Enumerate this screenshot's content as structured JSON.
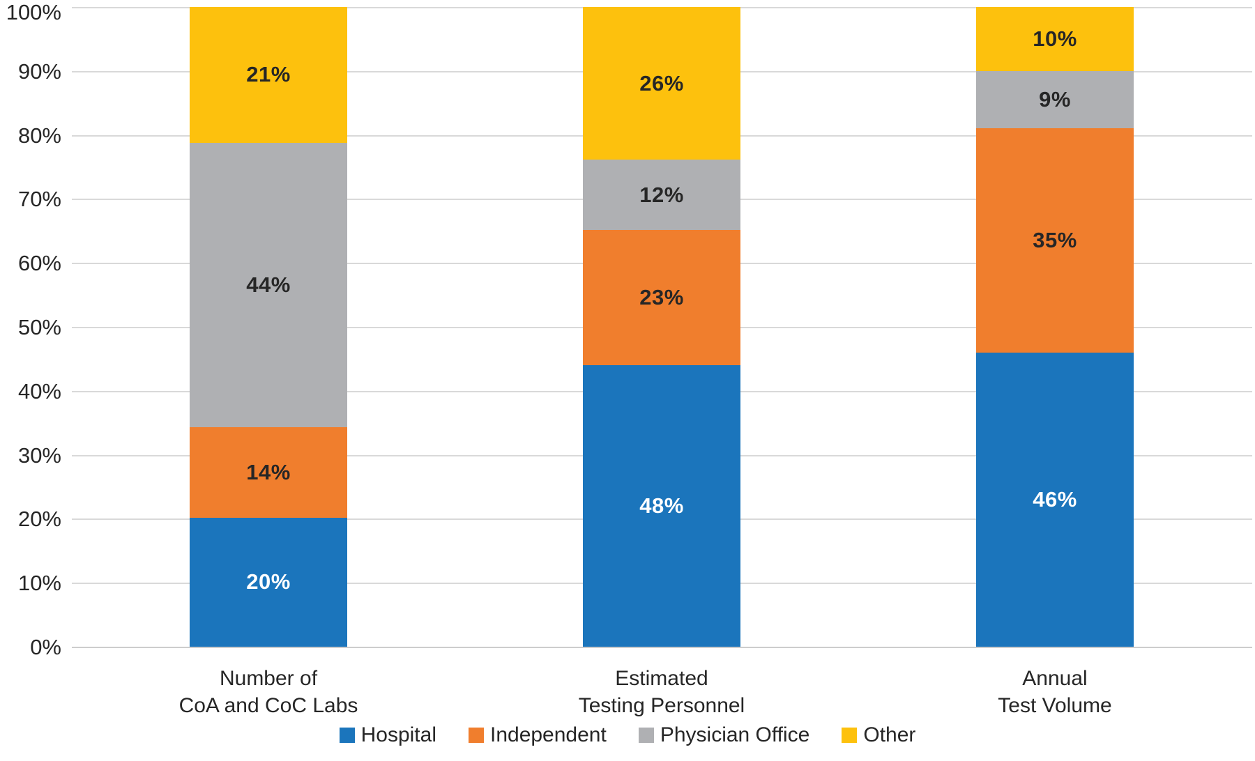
{
  "chart_data": {
    "type": "bar",
    "variant": "stacked-100-percent",
    "title": "",
    "xlabel": "",
    "ylabel": "",
    "categories": [
      "Number of\nCoA and CoC Labs",
      "Estimated\nTesting Personnel",
      "Annual\nTest Volume"
    ],
    "series": [
      {
        "name": "Hospital",
        "color": "#1B75BC",
        "data_label_color": "#FFFFFF",
        "values": [
          20,
          48,
          46
        ]
      },
      {
        "name": "Independent",
        "color": "#F07E2D",
        "data_label_color": "#262626",
        "values": [
          14,
          23,
          35
        ]
      },
      {
        "name": "Physician Office",
        "color": "#AFB0B3",
        "data_label_color": "#262626",
        "values": [
          44,
          12,
          9
        ]
      },
      {
        "name": "Other",
        "color": "#FDC10D",
        "data_label_color": "#262626",
        "values": [
          21,
          26,
          10
        ]
      }
    ],
    "data_label_format": "{value}%",
    "y_axis": {
      "min": 0,
      "max": 100,
      "tick_interval": 10,
      "tick_labels": [
        "0%",
        "10%",
        "20%",
        "30%",
        "40%",
        "50%",
        "60%",
        "70%",
        "80%",
        "90%",
        "100%"
      ]
    },
    "grid": "horizontal",
    "legend": {
      "position": "bottom",
      "items": [
        "Hospital",
        "Independent",
        "Physician Office",
        "Other"
      ]
    }
  },
  "colors": {
    "background": "#FFFFFF",
    "gridline": "#D9D9D9",
    "axis_line": "#CDCDCD",
    "axis_text": "#262626"
  }
}
